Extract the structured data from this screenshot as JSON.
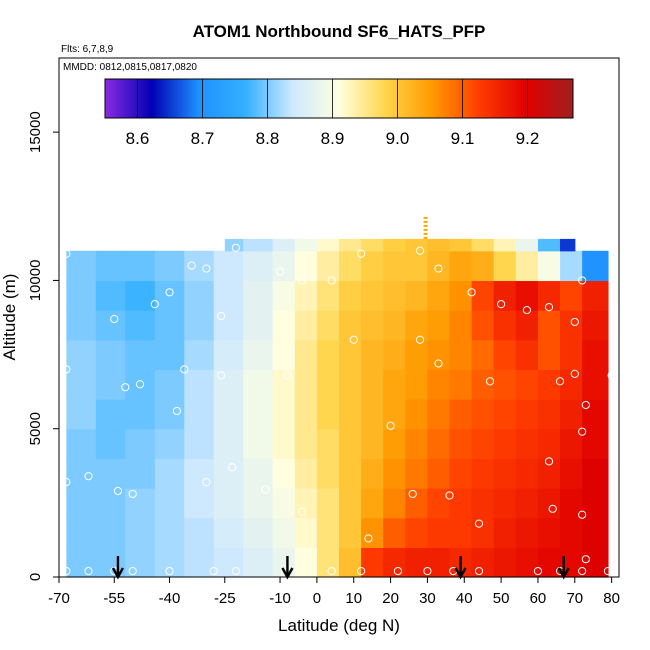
{
  "chart_data": {
    "type": "heatmap",
    "title": "ATOM1 Northbound SF6_HATS_PFP",
    "subtitle_flights": "Flts: 6,7,8,9",
    "subtitle_dates": "MMDD: 0812,0815,0817,0820",
    "xlabel": "Latitude (deg N)",
    "ylabel": "Altitude (m)",
    "xlim": [
      -70,
      82
    ],
    "ylim": [
      0,
      17500
    ],
    "x_ticks": [
      -70,
      -55,
      -40,
      -25,
      -10,
      0,
      10,
      20,
      30,
      40,
      50,
      60,
      70,
      80
    ],
    "x_tick_labels": [
      "-70",
      "-55",
      "-40",
      "-25",
      "-10",
      "0",
      "10",
      "20",
      "30",
      "40",
      "50",
      "60",
      "70",
      "80"
    ],
    "y_ticks": [
      0,
      5000,
      10000,
      15000
    ],
    "y_tick_labels": [
      "0",
      "5000",
      "10000",
      "15000"
    ],
    "colorbar": {
      "min": 8.55,
      "max": 9.27,
      "ticks": [
        8.6,
        8.7,
        8.8,
        8.9,
        9.0,
        9.1,
        9.2
      ],
      "tick_labels": [
        "8.6",
        "8.7",
        "8.8",
        "8.9",
        "9.0",
        "9.1",
        "9.2"
      ],
      "stops": [
        "#8a2be2",
        "#0000b4",
        "#1e90ff",
        "#33b0ff",
        "#cde8ff",
        "#ffffe0",
        "#ffd54a",
        "#ff9a00",
        "#ff3c00",
        "#e00000",
        "#a02020"
      ]
    },
    "grid": {
      "lat_edges": [
        -68,
        -60,
        -52,
        -44,
        -36,
        -28,
        -20,
        -12,
        -6,
        0,
        6,
        12,
        18,
        24,
        30,
        36,
        42,
        48,
        54,
        60,
        66,
        72,
        79
      ],
      "alt_edges": [
        0,
        1000,
        2000,
        3000,
        4000,
        5000,
        6000,
        7000,
        8000,
        9000,
        10000,
        11000
      ],
      "values": [
        [
          8.8,
          8.8,
          8.81,
          8.82,
          8.83,
          8.84,
          8.86,
          8.88,
          8.91,
          8.96,
          9.01,
          9.13,
          9.15,
          9.16,
          9.16,
          9.15,
          9.16,
          9.17,
          9.18,
          9.19,
          9.19,
          9.2
        ],
        [
          8.8,
          8.8,
          8.81,
          8.82,
          8.83,
          8.85,
          8.87,
          8.89,
          8.92,
          8.96,
          9.0,
          9.06,
          9.1,
          9.12,
          9.13,
          9.13,
          9.14,
          9.16,
          9.17,
          9.18,
          9.19,
          9.2
        ],
        [
          8.8,
          8.8,
          8.81,
          8.82,
          8.84,
          8.86,
          8.88,
          8.9,
          8.93,
          8.96,
          9.0,
          9.04,
          9.07,
          9.1,
          9.12,
          9.13,
          9.14,
          9.15,
          9.16,
          9.17,
          9.19,
          9.2
        ],
        [
          8.8,
          8.8,
          8.8,
          8.82,
          8.84,
          8.86,
          8.88,
          8.91,
          8.94,
          8.97,
          9.0,
          9.03,
          9.06,
          9.08,
          9.1,
          9.12,
          9.13,
          9.14,
          9.15,
          9.16,
          9.18,
          9.2
        ],
        [
          8.8,
          8.79,
          8.8,
          8.81,
          8.83,
          8.86,
          8.89,
          8.92,
          8.95,
          8.97,
          9.0,
          9.02,
          9.05,
          9.07,
          9.09,
          9.11,
          9.12,
          9.13,
          9.14,
          9.15,
          9.17,
          9.19
        ],
        [
          8.81,
          8.79,
          8.79,
          8.8,
          8.83,
          8.86,
          8.89,
          8.92,
          8.95,
          8.98,
          9.0,
          9.02,
          9.04,
          9.06,
          9.08,
          9.1,
          9.11,
          9.12,
          9.13,
          9.14,
          9.16,
          9.19
        ],
        [
          8.81,
          8.8,
          8.79,
          8.8,
          8.83,
          8.86,
          8.89,
          8.92,
          8.95,
          8.98,
          9.0,
          9.02,
          9.04,
          9.05,
          9.07,
          9.08,
          9.1,
          9.11,
          9.12,
          9.13,
          9.15,
          9.18
        ],
        [
          8.81,
          8.8,
          8.79,
          8.79,
          8.82,
          8.85,
          8.88,
          8.91,
          8.95,
          8.98,
          9.0,
          9.02,
          9.03,
          9.05,
          9.06,
          9.07,
          9.09,
          9.12,
          9.14,
          9.11,
          9.14,
          9.18
        ],
        [
          8.8,
          8.79,
          8.78,
          8.79,
          8.81,
          8.84,
          8.87,
          8.91,
          8.94,
          8.97,
          9.0,
          9.01,
          9.02,
          9.04,
          9.05,
          9.07,
          9.11,
          9.14,
          9.16,
          9.11,
          9.14,
          9.17
        ],
        [
          8.8,
          8.78,
          8.77,
          8.79,
          8.81,
          8.84,
          8.87,
          8.9,
          8.93,
          8.96,
          8.99,
          9.0,
          9.01,
          9.02,
          9.04,
          9.06,
          9.12,
          9.16,
          9.18,
          9.15,
          9.12,
          9.16
        ],
        [
          8.8,
          8.79,
          8.79,
          8.8,
          8.82,
          8.84,
          8.86,
          8.88,
          8.91,
          8.94,
          8.97,
          8.99,
          9.0,
          9.0,
          9.02,
          9.04,
          9.03,
          8.98,
          8.94,
          8.9,
          8.82,
          8.7
        ]
      ]
    },
    "upper_layer": {
      "lat_edges": [
        -25,
        -20,
        -12,
        -6,
        0,
        6,
        12,
        18,
        24,
        30,
        36,
        42,
        48,
        54,
        60,
        66,
        70
      ],
      "alt_range": [
        11000,
        11400
      ],
      "values": [
        8.81,
        8.83,
        8.86,
        8.89,
        8.92,
        8.95,
        8.97,
        8.99,
        9.0,
        9.01,
        9.0,
        8.97,
        8.93,
        8.88,
        8.78,
        8.65
      ]
    },
    "samples": [
      [
        -68,
        200
      ],
      [
        -62,
        200
      ],
      [
        -55,
        200
      ],
      [
        -50,
        200
      ],
      [
        -40,
        200
      ],
      [
        -28,
        200
      ],
      [
        -22,
        200
      ],
      [
        4,
        200
      ],
      [
        12,
        200
      ],
      [
        22,
        200
      ],
      [
        30,
        200
      ],
      [
        37,
        200
      ],
      [
        44,
        200
      ],
      [
        60,
        200
      ],
      [
        66,
        200
      ],
      [
        72,
        200
      ],
      [
        79,
        200
      ],
      [
        -68,
        3200
      ],
      [
        -62,
        3400
      ],
      [
        -54,
        2900
      ],
      [
        -50,
        2800
      ],
      [
        -30,
        3200
      ],
      [
        -23,
        3700
      ],
      [
        -14,
        2950
      ],
      [
        -4,
        2200
      ],
      [
        14,
        1300
      ],
      [
        26,
        2800
      ],
      [
        36,
        2750
      ],
      [
        44,
        1800
      ],
      [
        64,
        2300
      ],
      [
        72,
        2100
      ],
      [
        73,
        600
      ],
      [
        -68,
        7000
      ],
      [
        -52,
        6400
      ],
      [
        -48,
        6500
      ],
      [
        -38,
        5600
      ],
      [
        -36,
        7000
      ],
      [
        -26,
        6800
      ],
      [
        -8,
        6800
      ],
      [
        10,
        8000
      ],
      [
        20,
        5100
      ],
      [
        28,
        8000
      ],
      [
        33,
        7200
      ],
      [
        47,
        6600
      ],
      [
        63,
        3900
      ],
      [
        66,
        6600
      ],
      [
        70,
        6850
      ],
      [
        73,
        5800
      ],
      [
        72,
        4900
      ],
      [
        80,
        6800
      ],
      [
        -68,
        10900
      ],
      [
        -55,
        8700
      ],
      [
        -44,
        9200
      ],
      [
        -40,
        9600
      ],
      [
        -34,
        10500
      ],
      [
        -30,
        10400
      ],
      [
        -26,
        8800
      ],
      [
        -22,
        11100
      ],
      [
        -10,
        10300
      ],
      [
        -4,
        10000
      ],
      [
        4,
        10000
      ],
      [
        12,
        10900
      ],
      [
        28,
        11000
      ],
      [
        33,
        10400
      ],
      [
        42,
        9600
      ],
      [
        50,
        9200
      ],
      [
        57,
        9000
      ],
      [
        63,
        9100
      ],
      [
        70,
        8600
      ],
      [
        72,
        10000
      ],
      [
        74,
        11200
      ]
    ],
    "arrows_lat": [
      -54,
      -8,
      39,
      67
    ],
    "dashed_marker_lat": 29.5,
    "dashed_marker_alt": [
      11400,
      12200
    ]
  }
}
